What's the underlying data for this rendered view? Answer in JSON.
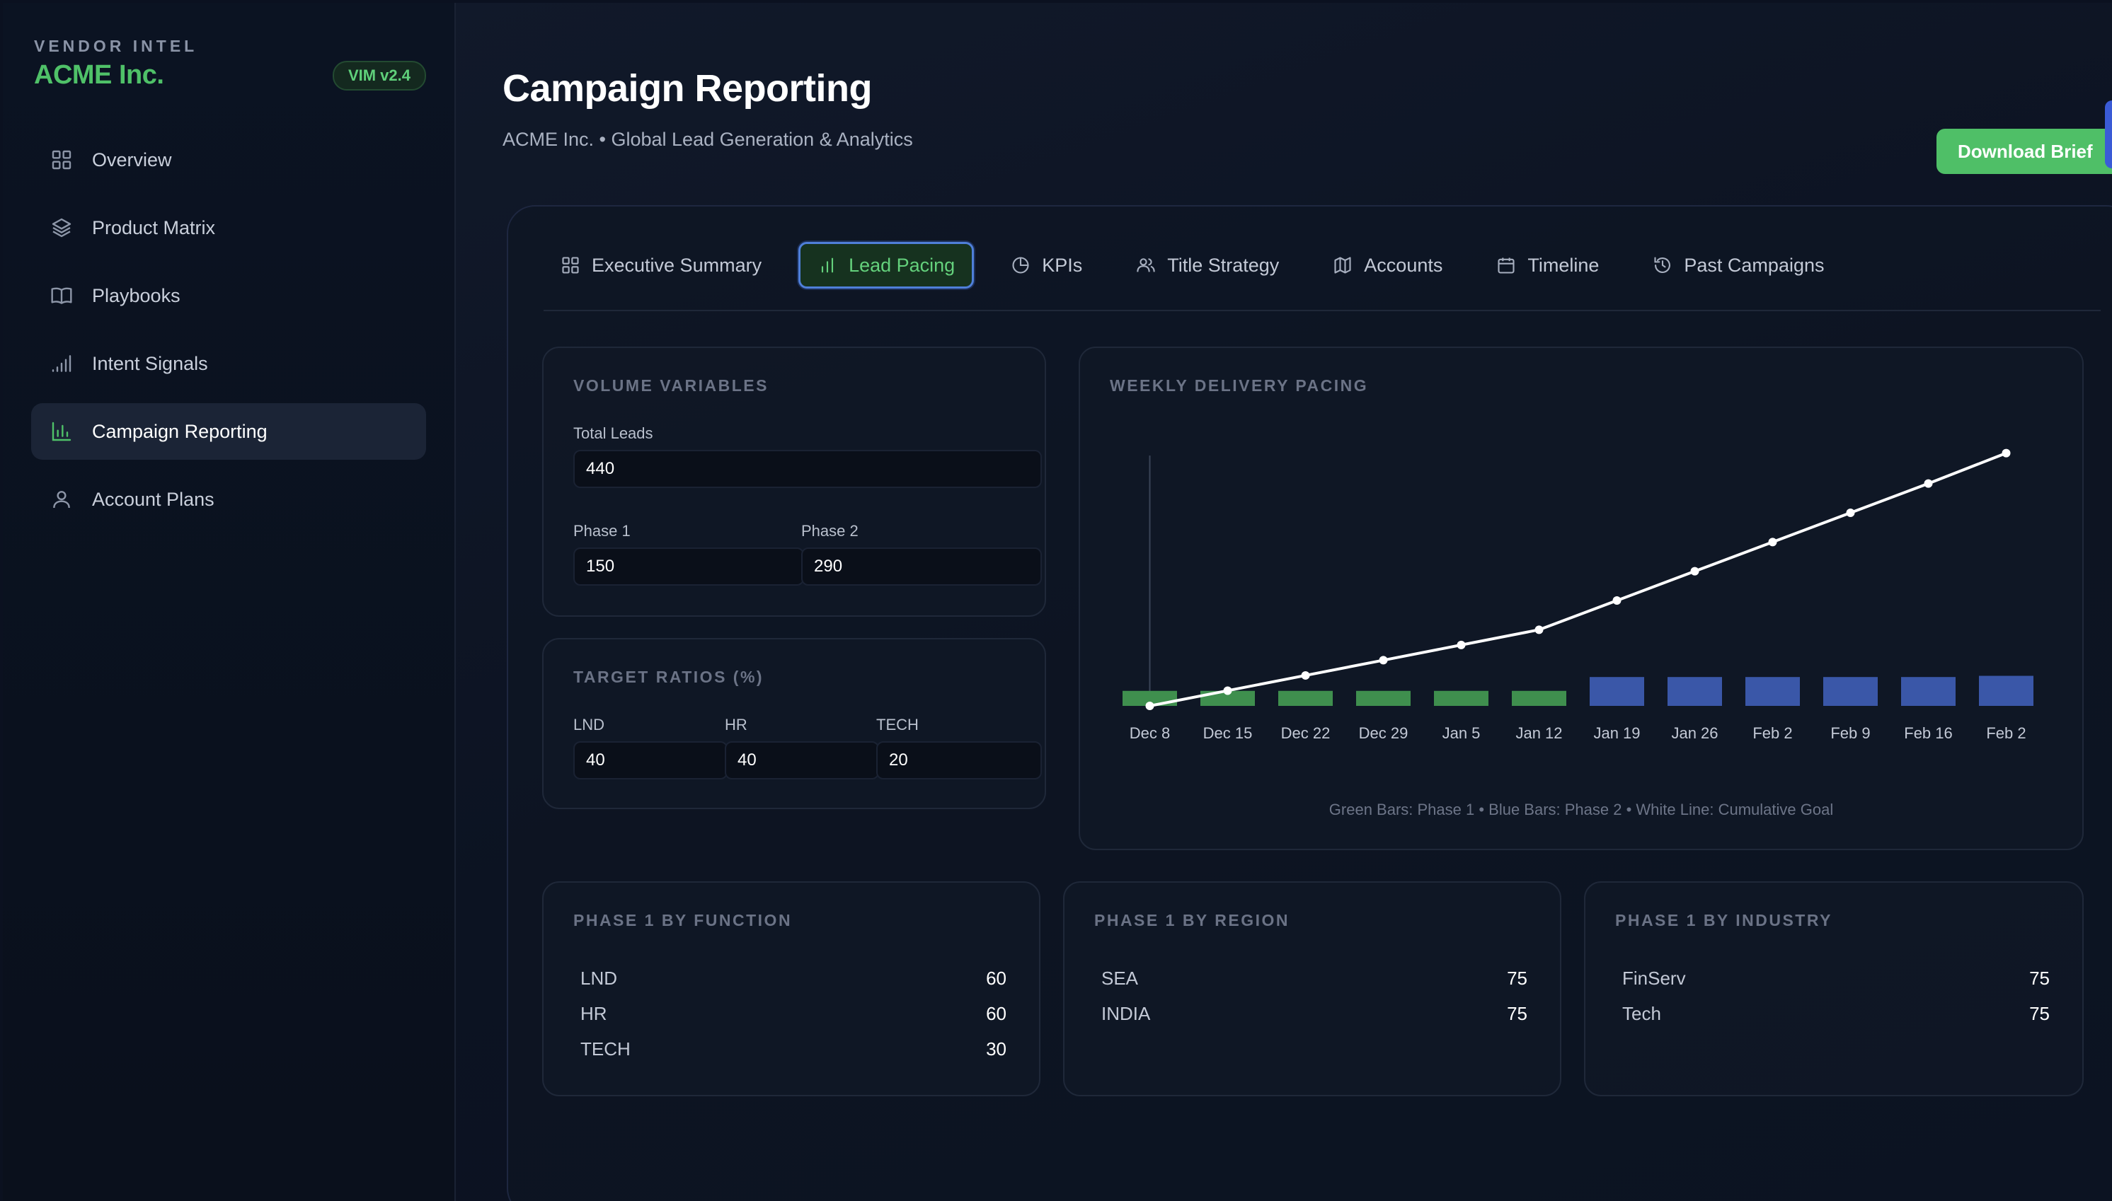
{
  "brand": {
    "eyebrow": "VENDOR INTEL",
    "name": "ACME Inc.",
    "version": "VIM v2.4"
  },
  "nav": [
    {
      "label": "Overview",
      "icon": "grid-icon"
    },
    {
      "label": "Product Matrix",
      "icon": "layers-icon"
    },
    {
      "label": "Playbooks",
      "icon": "book-icon"
    },
    {
      "label": "Intent Signals",
      "icon": "signal-icon"
    },
    {
      "label": "Campaign Reporting",
      "icon": "bar-chart-icon",
      "active": true
    },
    {
      "label": "Account Plans",
      "icon": "user-icon"
    }
  ],
  "header": {
    "title": "Campaign Reporting",
    "subtitle": "ACME Inc. • Global Lead Generation & Analytics",
    "download_label": "Download Brief"
  },
  "tabs": [
    {
      "label": "Executive Summary",
      "icon": "grid-icon"
    },
    {
      "label": "Lead Pacing",
      "icon": "bar-chart-icon",
      "active": true
    },
    {
      "label": "KPIs",
      "icon": "pie-chart-icon"
    },
    {
      "label": "Title Strategy",
      "icon": "users-icon"
    },
    {
      "label": "Accounts",
      "icon": "map-icon"
    },
    {
      "label": "Timeline",
      "icon": "calendar-icon"
    },
    {
      "label": "Past Campaigns",
      "icon": "history-icon"
    }
  ],
  "volume": {
    "title": "VOLUME VARIABLES",
    "total_label": "Total Leads",
    "total_value": "440",
    "phase1_label": "Phase 1",
    "phase1_value": "150",
    "phase2_label": "Phase 2",
    "phase2_value": "290"
  },
  "ratios": {
    "title": "TARGET RATIOS (%)",
    "lnd_label": "LND",
    "lnd_value": "40",
    "hr_label": "HR",
    "hr_value": "40",
    "tech_label": "TECH",
    "tech_value": "20"
  },
  "pacing": {
    "title": "WEEKLY DELIVERY PACING",
    "legend": "Green Bars: Phase 1 • Blue Bars: Phase 2 • White Line: Cumulative Goal"
  },
  "chart_data": {
    "type": "bar",
    "categories": [
      "Dec 8",
      "Dec 15",
      "Dec 22",
      "Dec 29",
      "Jan 5",
      "Jan 12",
      "Jan 19",
      "Jan 26",
      "Feb 2",
      "Feb 9",
      "Feb 16",
      "Feb 2"
    ],
    "series": [
      {
        "name": "Phase 1",
        "type": "bar",
        "color": "#3f8f4e",
        "values": [
          25,
          25,
          25,
          25,
          25,
          25,
          0,
          0,
          0,
          0,
          0,
          0
        ]
      },
      {
        "name": "Phase 2",
        "type": "bar",
        "color": "#3a57a8",
        "values": [
          0,
          0,
          0,
          0,
          0,
          0,
          48,
          48,
          48,
          48,
          48,
          50
        ]
      },
      {
        "name": "Cumulative Goal",
        "type": "line",
        "color": "#ffffff",
        "values": [
          0,
          25,
          50,
          75,
          100,
          125,
          173,
          221,
          269,
          317,
          365,
          415
        ]
      }
    ],
    "ylim": [
      0,
      425
    ],
    "grid": false
  },
  "by_function": {
    "title": "PHASE 1 BY FUNCTION",
    "rows": [
      {
        "label": "LND",
        "value": "60"
      },
      {
        "label": "HR",
        "value": "60"
      },
      {
        "label": "TECH",
        "value": "30"
      }
    ]
  },
  "by_region": {
    "title": "PHASE 1 BY REGION",
    "rows": [
      {
        "label": "SEA",
        "value": "75"
      },
      {
        "label": "INDIA",
        "value": "75"
      }
    ]
  },
  "by_industry": {
    "title": "PHASE 1 BY INDUSTRY",
    "rows": [
      {
        "label": "FinServ",
        "value": "75"
      },
      {
        "label": "Tech",
        "value": "75"
      }
    ]
  }
}
